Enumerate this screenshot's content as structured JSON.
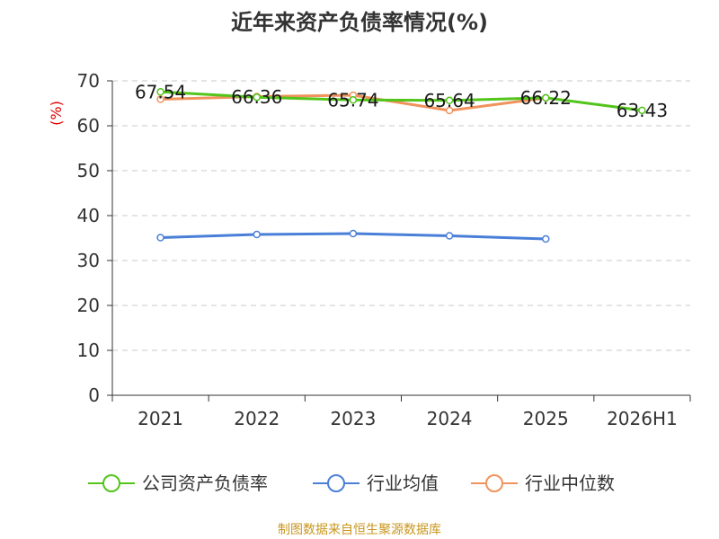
{
  "chart_data": {
    "type": "line",
    "title": "近年来资产负债率情况(%)",
    "unit_label": "(%)",
    "categories": [
      "2021",
      "2022",
      "2023",
      "2024",
      "2025",
      "2026H1"
    ],
    "ylim": [
      0,
      70
    ],
    "yticks": [
      0,
      10,
      20,
      30,
      40,
      50,
      60,
      70
    ],
    "grid": true,
    "legend_position": "bottom",
    "series": [
      {
        "name": "公司资产负债率",
        "color": "#52c41a",
        "values": [
          67.54,
          66.36,
          65.74,
          65.64,
          66.22,
          63.43
        ],
        "labels": [
          "67.54",
          "66.36",
          "65.74",
          "65.64",
          "66.22",
          "63.43"
        ]
      },
      {
        "name": "行业均值",
        "color": "#4a7fd8",
        "values": [
          35.1,
          35.8,
          36.0,
          35.5,
          34.8,
          null
        ]
      },
      {
        "name": "行业中位数",
        "color": "#f0925c",
        "values": [
          65.9,
          66.5,
          66.8,
          63.4,
          66.2,
          null
        ]
      }
    ],
    "source": "制图数据来自恒生聚源数据库"
  }
}
